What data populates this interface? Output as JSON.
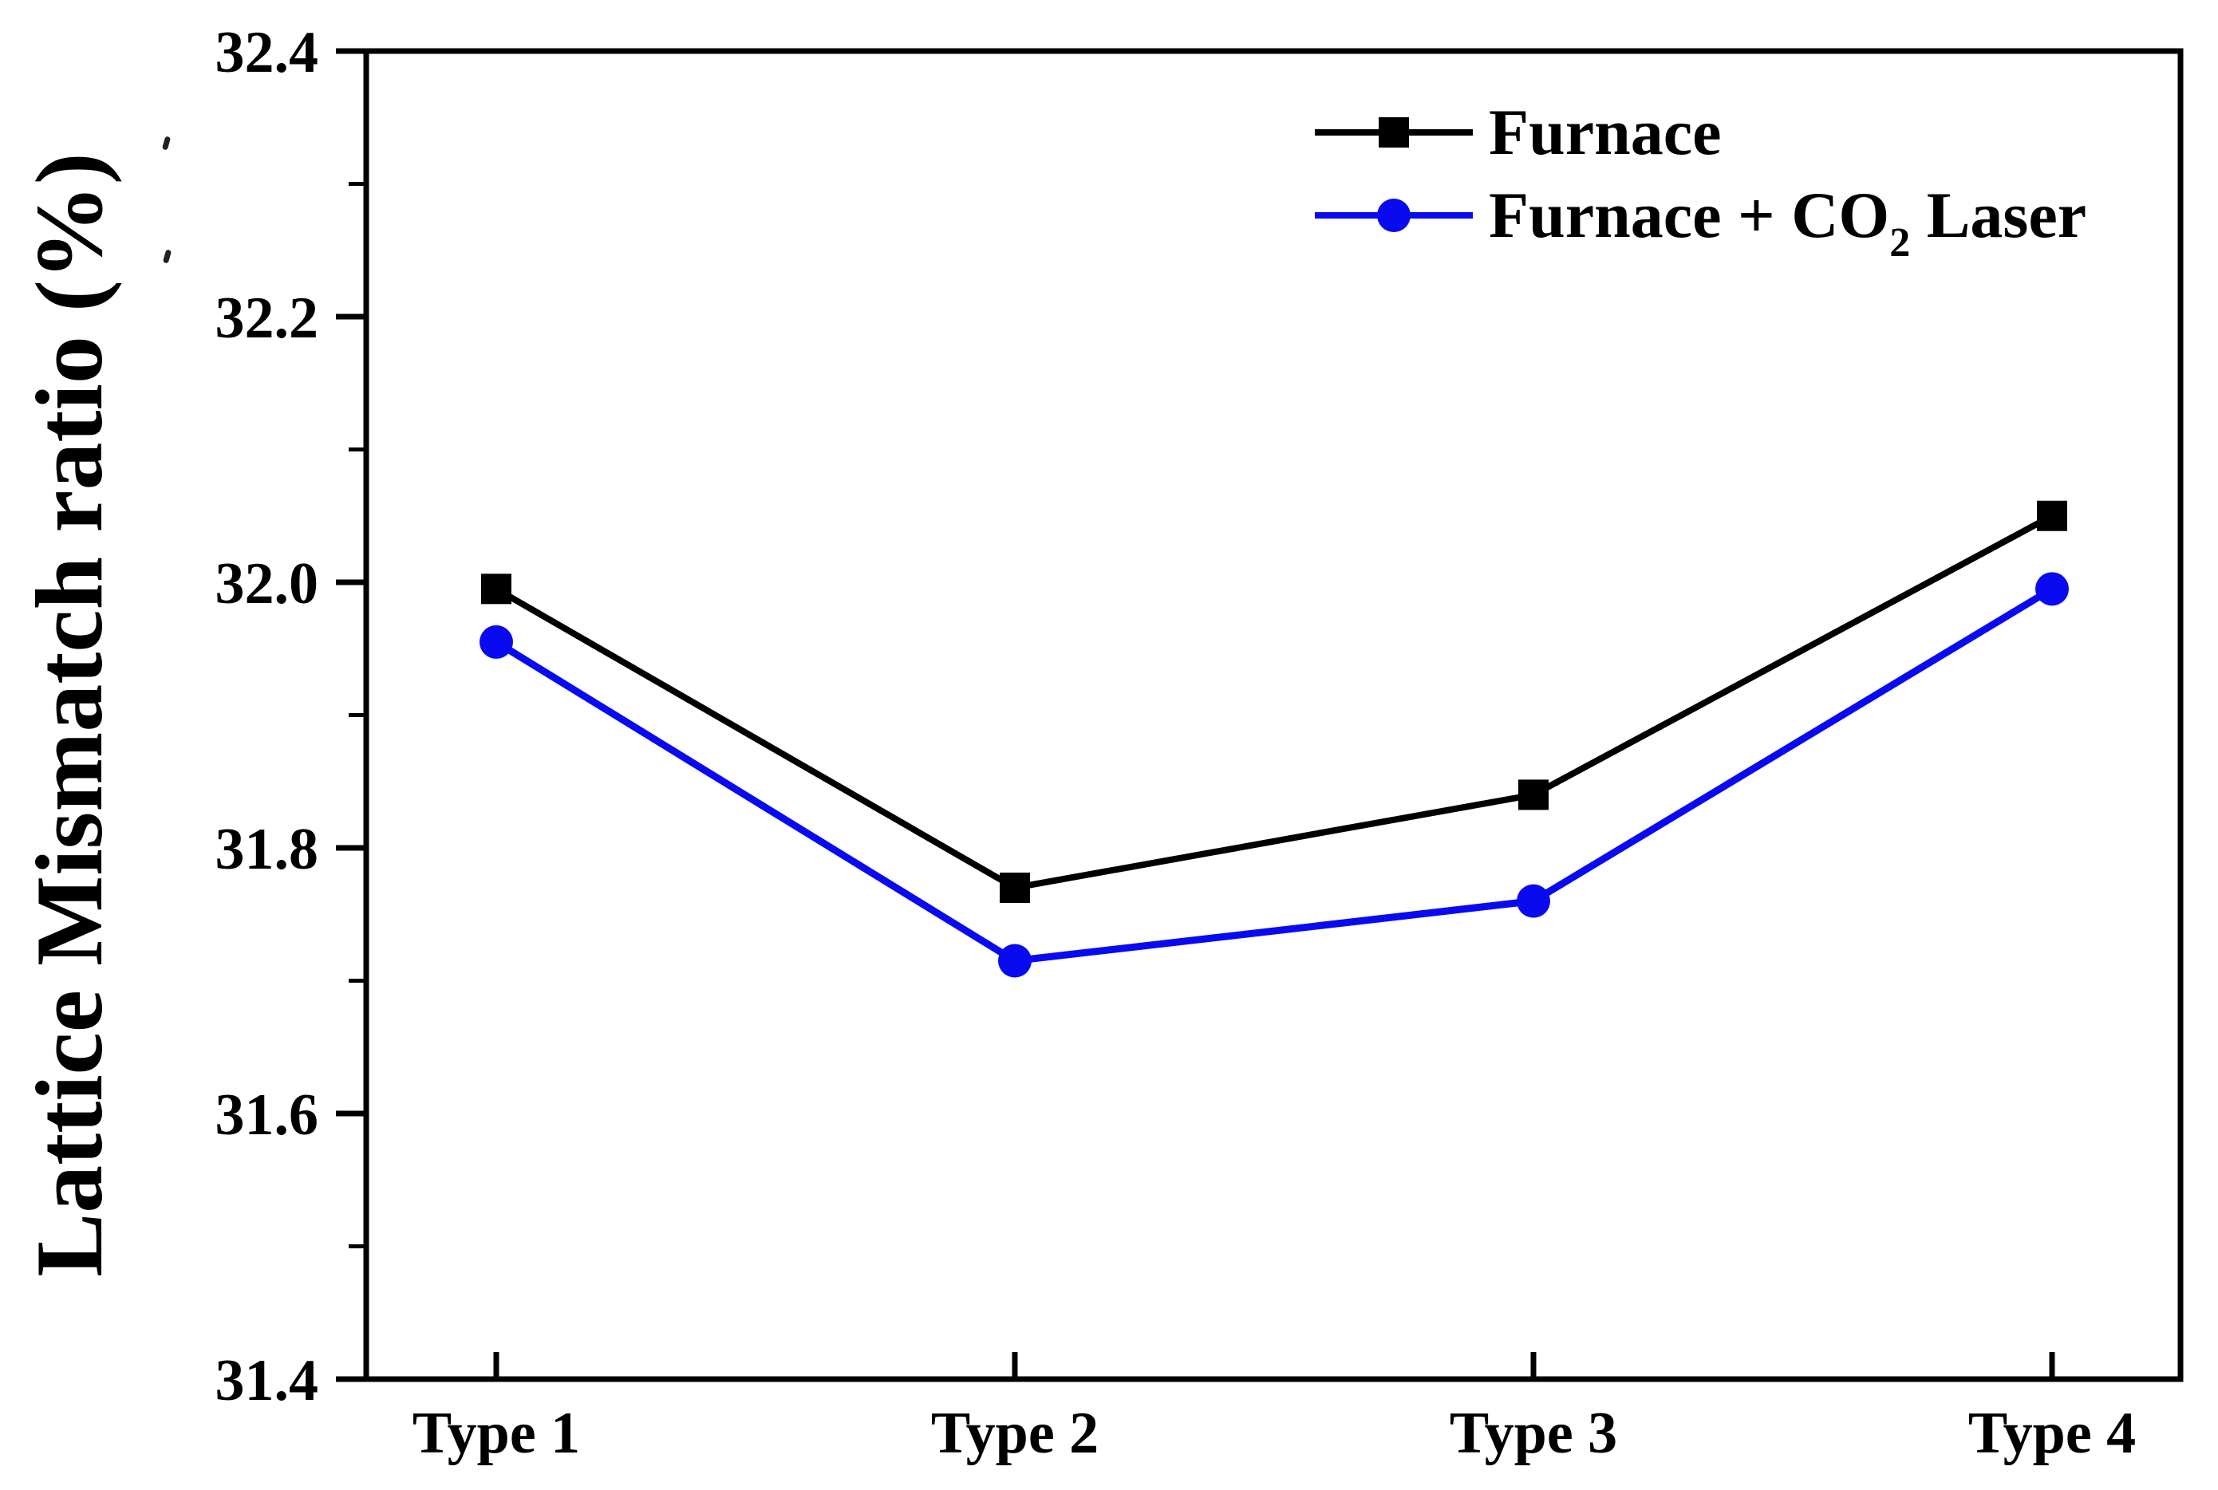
{
  "chart_data": {
    "type": "line",
    "title": "",
    "xlabel": "",
    "ylabel": "Lattice Mismatch ratio (%)",
    "categories": [
      "Type 1",
      "Type 2",
      "Type 3",
      "Type 4"
    ],
    "series": [
      {
        "name": "Furnace",
        "color": "#000000",
        "marker": "square",
        "line_width": 8,
        "values": [
          31.995,
          31.77,
          31.84,
          32.05
        ]
      },
      {
        "name": "Furnace + CO2 Laser",
        "color": "#0a0af0",
        "marker": "circle",
        "line_width": 9,
        "values": [
          31.955,
          31.715,
          31.76,
          31.995
        ]
      }
    ],
    "ylim": [
      31.4,
      32.4
    ],
    "yticks": [
      "31.4",
      "31.6",
      "31.8",
      "32.0",
      "32.2",
      "32.4"
    ],
    "ytick_step": 0.2,
    "minor_ytick_step": 0.1,
    "grid": false,
    "frame": true,
    "legend_position": "top-right"
  },
  "legend": {
    "items": [
      {
        "label_pre": "Furnace",
        "label_sub": "",
        "label_post": ""
      },
      {
        "label_pre": "Furnace + CO",
        "label_sub": "2",
        "label_post": " Laser"
      }
    ]
  },
  "colors": {
    "axis": "#000000",
    "series_furnace": "#000000",
    "series_furnace_co2_laser": "#0a0af0",
    "background": "#ffffff"
  }
}
